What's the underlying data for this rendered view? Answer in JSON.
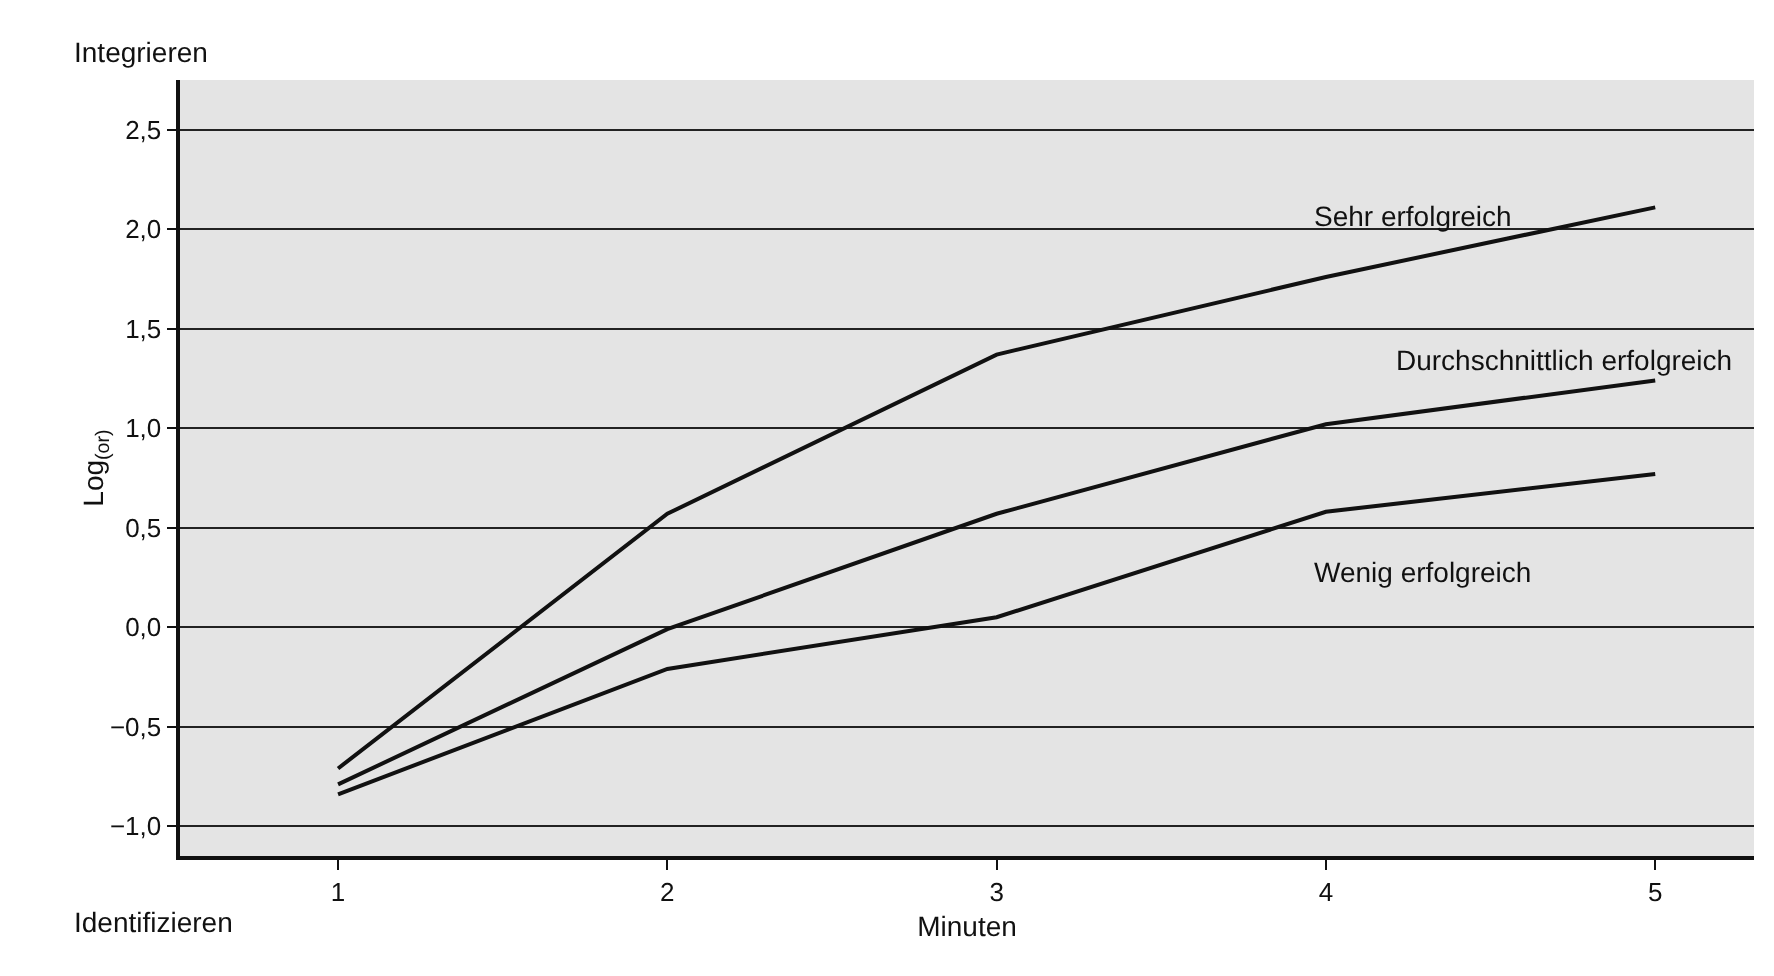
{
  "chart_data": {
    "type": "line",
    "xlabel": "Minuten",
    "ylabel": "Log$_{(or)}$",
    "x": [
      1,
      2,
      3,
      4,
      5
    ],
    "series": [
      {
        "name": "Sehr erfolgreich",
        "color": "#111111",
        "values": [
          -0.71,
          0.57,
          1.37,
          1.76,
          2.11
        ]
      },
      {
        "name": "Durchschnittlich erfolgreich",
        "color": "#111111",
        "values": [
          -0.79,
          -0.01,
          0.57,
          1.02,
          1.24
        ]
      },
      {
        "name": "Wenig erfolgreich",
        "color": "#111111",
        "values": [
          -0.84,
          -0.21,
          0.05,
          0.58,
          0.77
        ]
      }
    ],
    "annotations": [
      "Integrieren",
      "Identifizieren"
    ],
    "xlim": [
      0.52,
      5.3
    ],
    "xticks": [
      1,
      2,
      3,
      4,
      5
    ],
    "ylim": [
      -1.15,
      2.75
    ],
    "yticks": [
      {
        "value": -1,
        "label": "−1,0"
      },
      {
        "value": -0.5,
        "label": "−0,5"
      },
      {
        "value": 0,
        "label": "0,0"
      },
      {
        "value": 0.5,
        "label": "0,5"
      },
      {
        "value": 1,
        "label": "1,0"
      },
      {
        "value": 1.5,
        "label": "1,5"
      },
      {
        "value": 2,
        "label": "2,0"
      },
      {
        "value": 2.5,
        "label": "2,5"
      }
    ],
    "grid": "y",
    "legend": false,
    "marker": "none",
    "line_style": "solid"
  }
}
